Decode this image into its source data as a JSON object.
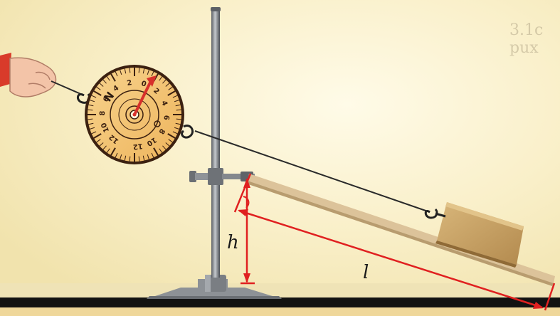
{
  "figure": {
    "symbol_height": "h",
    "symbol_length": "l",
    "dynamometer_unit": "N",
    "dial_numbers": [
      "12",
      "10",
      "8",
      "6",
      "4",
      "2",
      "0",
      "2",
      "4",
      "6",
      "8",
      "10",
      "12"
    ],
    "faded_top_text": "3.1с pux"
  },
  "colors": {
    "background_top": "#fbf4d6",
    "background_bottom": "#f4e7b2",
    "dial_face": "#f4c271",
    "dial_ink": "#3b2010",
    "needle": "#d8302b",
    "board": "#d8bf93",
    "block": "#c9a466",
    "stand": "#7b7f84",
    "annotation": "#e02020",
    "table": "#111111",
    "sleeve": "#d93b2a",
    "skin": "#f3c4a8"
  }
}
